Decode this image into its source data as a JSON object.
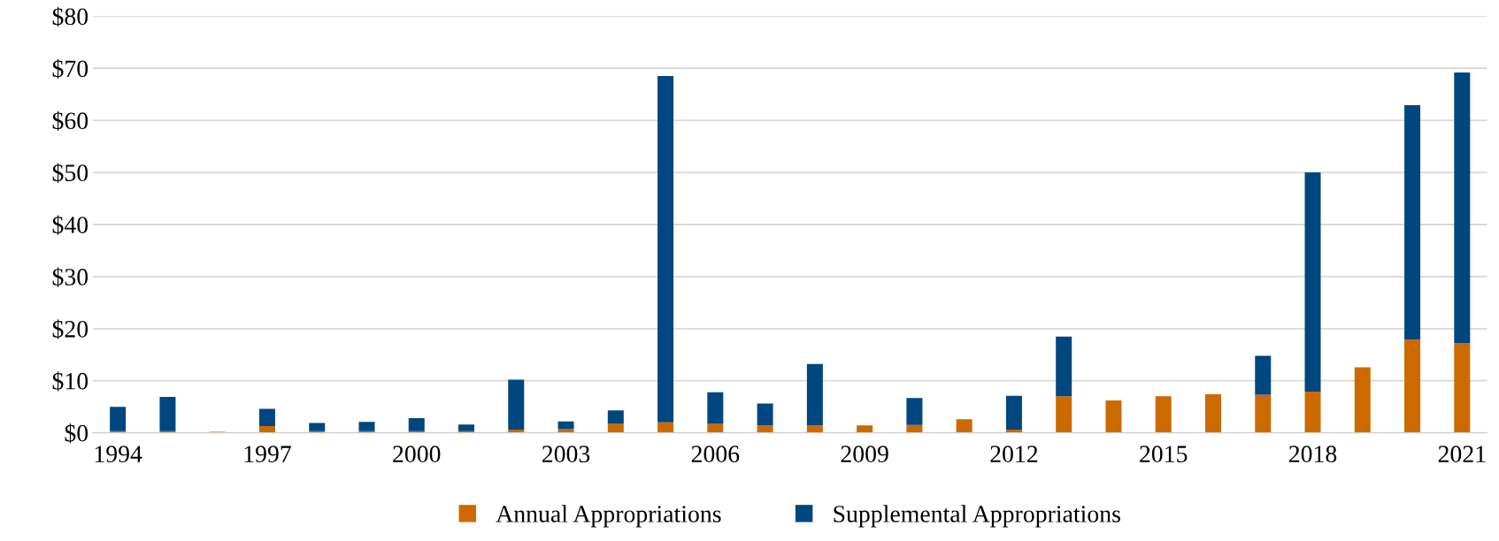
{
  "chart_data": {
    "type": "bar",
    "stacked": true,
    "categories": [
      "1994",
      null,
      null,
      "1997",
      null,
      null,
      "2000",
      null,
      null,
      "2003",
      null,
      null,
      "2006",
      null,
      null,
      "2009",
      null,
      null,
      "2012",
      null,
      null,
      "2015",
      null,
      null,
      "2018",
      null,
      null,
      "2021"
    ],
    "series": [
      {
        "name": "Annual Appropriations",
        "color": "#cc6a00",
        "values": [
          0.3,
          0.3,
          0.2,
          1.3,
          0.3,
          0.3,
          0.3,
          0.3,
          0.6,
          0.7,
          1.7,
          2.0,
          1.7,
          1.4,
          1.4,
          1.4,
          1.5,
          2.6,
          0.6,
          7.0,
          6.2,
          7.0,
          7.4,
          7.3,
          7.9,
          12.6,
          17.9,
          17.2
        ]
      },
      {
        "name": "Supplemental Appropriations",
        "color": "#00467f",
        "values": [
          4.7,
          6.6,
          0,
          3.3,
          1.6,
          1.8,
          2.5,
          1.3,
          9.6,
          1.5,
          2.6,
          66.5,
          6.1,
          4.2,
          11.8,
          0,
          5.2,
          0,
          6.5,
          11.5,
          0,
          0,
          0,
          7.5,
          42.1,
          0,
          45.0,
          52.0
        ]
      }
    ],
    "ylim": [
      0,
      80
    ],
    "yticks": [
      {
        "value": 0,
        "label": "$0"
      },
      {
        "value": 10,
        "label": "$10"
      },
      {
        "value": 20,
        "label": "$20"
      },
      {
        "value": 30,
        "label": "$30"
      },
      {
        "value": 40,
        "label": "$40"
      },
      {
        "value": 50,
        "label": "$50"
      },
      {
        "value": 60,
        "label": "$60"
      },
      {
        "value": 70,
        "label": "$70"
      },
      {
        "value": 80,
        "label": "$80"
      }
    ],
    "grid": "y",
    "legend": "bottom"
  }
}
